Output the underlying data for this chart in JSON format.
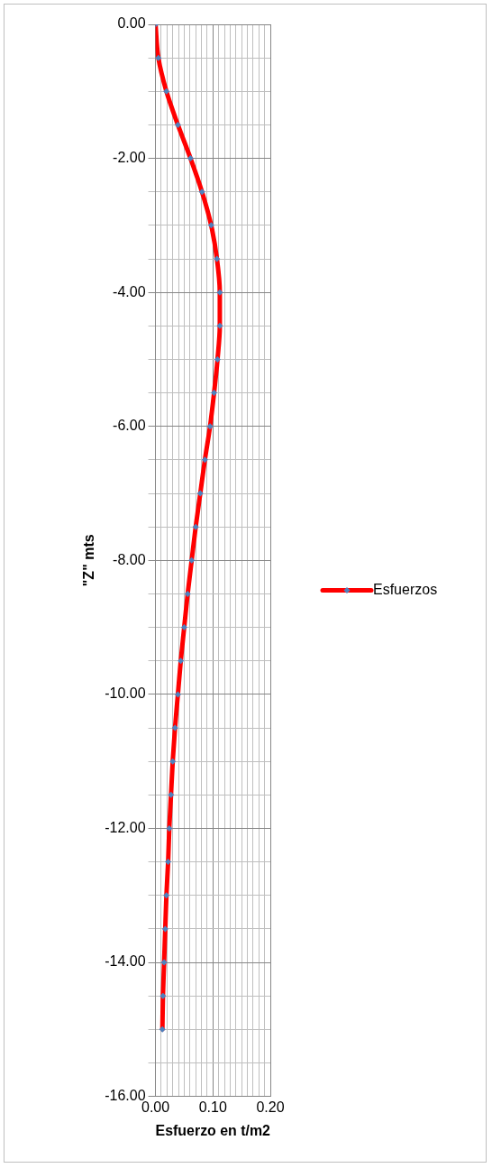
{
  "chart_data": {
    "type": "line",
    "xlabel": "Esfuerzo en t/m2",
    "ylabel": "\"Z\" mts",
    "series": [
      {
        "name": "Esfuerzos",
        "color": "#ff0000",
        "x": [
          0,
          0.005,
          0.019,
          0.039,
          0.061,
          0.081,
          0.097,
          0.107,
          0.112,
          0.112,
          0.108,
          0.102,
          0.095,
          0.086,
          0.078,
          0.07,
          0.063,
          0.056,
          0.05,
          0.044,
          0.039,
          0.034,
          0.03,
          0.027,
          0.024,
          0.022,
          0.019,
          0.017,
          0.015,
          0.013,
          0.012
        ],
        "values": [
          0,
          -0.5,
          -1,
          -1.5,
          -2,
          -2.5,
          -3,
          -3.5,
          -4,
          -4.5,
          -5,
          -5.5,
          -6,
          -6.5,
          -7,
          -7.5,
          -8,
          -8.5,
          -9,
          -9.5,
          -10,
          -10.5,
          -11,
          -11.5,
          -12,
          -12.5,
          -13,
          -13.5,
          -14,
          -14.5,
          -15
        ]
      }
    ],
    "xlim": [
      0,
      0.2
    ],
    "xticks": [
      {
        "value": 0,
        "label": "0.00"
      },
      {
        "value": 0.01,
        "label": null
      },
      {
        "value": 0.02,
        "label": null
      },
      {
        "value": 0.03,
        "label": null
      },
      {
        "value": 0.04,
        "label": null
      },
      {
        "value": 0.05,
        "label": null
      },
      {
        "value": 0.06,
        "label": null
      },
      {
        "value": 0.07,
        "label": null
      },
      {
        "value": 0.08,
        "label": null
      },
      {
        "value": 0.09,
        "label": null
      },
      {
        "value": 0.1,
        "label": "0.10"
      },
      {
        "value": 0.11,
        "label": null
      },
      {
        "value": 0.12,
        "label": null
      },
      {
        "value": 0.13,
        "label": null
      },
      {
        "value": 0.14,
        "label": null
      },
      {
        "value": 0.15,
        "label": null
      },
      {
        "value": 0.16,
        "label": null
      },
      {
        "value": 0.17,
        "label": null
      },
      {
        "value": 0.18,
        "label": null
      },
      {
        "value": 0.19,
        "label": null
      },
      {
        "value": 0.2,
        "label": "0.20"
      }
    ],
    "ylim": [
      -16,
      0
    ],
    "yticks": [
      {
        "value": 0,
        "label": "0.00"
      },
      {
        "value": -0.5,
        "label": null
      },
      {
        "value": -1,
        "label": null
      },
      {
        "value": -1.5,
        "label": null
      },
      {
        "value": -2,
        "label": "-2.00"
      },
      {
        "value": -2.5,
        "label": null
      },
      {
        "value": -3,
        "label": null
      },
      {
        "value": -3.5,
        "label": null
      },
      {
        "value": -4,
        "label": "-4.00"
      },
      {
        "value": -4.5,
        "label": null
      },
      {
        "value": -5,
        "label": null
      },
      {
        "value": -5.5,
        "label": null
      },
      {
        "value": -6,
        "label": "-6.00"
      },
      {
        "value": -6.5,
        "label": null
      },
      {
        "value": -7,
        "label": null
      },
      {
        "value": -7.5,
        "label": null
      },
      {
        "value": -8,
        "label": "-8.00"
      },
      {
        "value": -8.5,
        "label": null
      },
      {
        "value": -9,
        "label": null
      },
      {
        "value": -9.5,
        "label": null
      },
      {
        "value": -10,
        "label": "-10.00"
      },
      {
        "value": -10.5,
        "label": null
      },
      {
        "value": -11,
        "label": null
      },
      {
        "value": -11.5,
        "label": null
      },
      {
        "value": -12,
        "label": "-12.00"
      },
      {
        "value": -12.5,
        "label": null
      },
      {
        "value": -13,
        "label": null
      },
      {
        "value": -13.5,
        "label": null
      },
      {
        "value": -14,
        "label": "-14.00"
      },
      {
        "value": -14.5,
        "label": null
      },
      {
        "value": -15,
        "label": null
      },
      {
        "value": -15.5,
        "label": null
      },
      {
        "value": -16,
        "label": "-16.00"
      }
    ],
    "grid": true,
    "legend": "right",
    "marker": "diamond",
    "line_style": "solid"
  }
}
